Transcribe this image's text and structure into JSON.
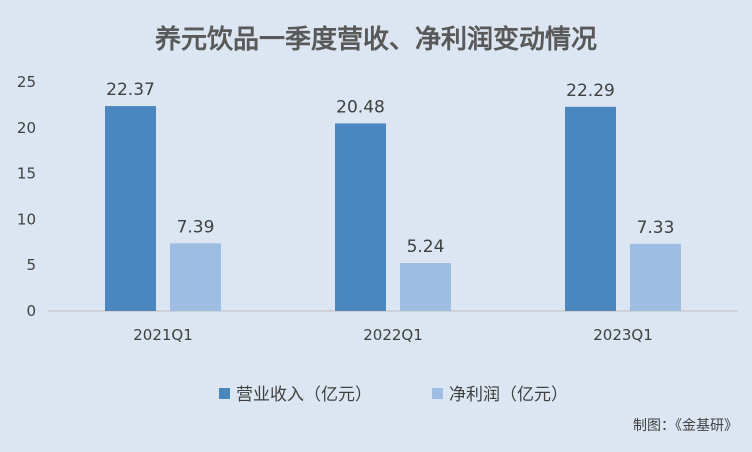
{
  "chart_data": {
    "type": "bar",
    "title": "养元饮品一季度营收、净利润变动情况",
    "categories": [
      "2021Q1",
      "2022Q1",
      "2023Q1"
    ],
    "series": [
      {
        "name": "营业收入（亿元）",
        "values": [
          22.37,
          20.48,
          22.29
        ],
        "color": "#4a86c0"
      },
      {
        "name": "净利润（亿元）",
        "values": [
          7.39,
          5.24,
          7.33
        ],
        "color": "#9dbde3"
      }
    ],
    "ylim": [
      0,
      25
    ],
    "yticks": [
      0,
      5,
      10,
      15,
      20,
      25
    ],
    "grid": false,
    "legend": "bottom",
    "value_labels": [
      "22.37",
      "7.39",
      "20.48",
      "5.24",
      "22.29",
      "7.33"
    ]
  },
  "credit": "制图：《金基研》",
  "colors": {
    "background": "#dce6f2",
    "axis": "#bfbfbf",
    "text": "#404040",
    "title": "#595959"
  }
}
